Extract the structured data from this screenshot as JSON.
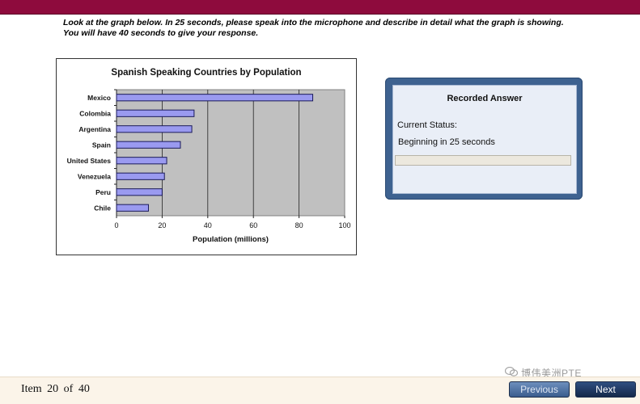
{
  "instruction": "Look at the graph below. In 25 seconds, please speak into the microphone and describe in detail what the graph is showing. You will have 40 seconds to give your response.",
  "chart_data": {
    "type": "bar",
    "orientation": "horizontal",
    "title": "Spanish Speaking Countries by Population",
    "xlabel": "Population (millions)",
    "ylabel": "",
    "categories": [
      "Chile",
      "Peru",
      "Venezuela",
      "United States",
      "Spain",
      "Argentina",
      "Colombia",
      "Mexico"
    ],
    "values": [
      14,
      20,
      21,
      22,
      28,
      33,
      34,
      86
    ],
    "xlim": [
      0,
      100
    ],
    "xticks": [
      0,
      20,
      40,
      60,
      80,
      100
    ],
    "grid": true,
    "colors": {
      "bar": "#9a9af0",
      "bar_edge": "#1a1a5a",
      "plot_bg": "#c0c0c0"
    }
  },
  "answer_panel": {
    "title": "Recorded Answer",
    "status_label": "Current Status:",
    "status_value": "Beginning in 25 seconds",
    "progress": 0
  },
  "footer": {
    "item_count": "Item 20 of 40",
    "previous_label": "Previous",
    "next_label": "Next"
  },
  "watermark": {
    "text": "博伟美洲PTE",
    "icon": "wechat-icon"
  },
  "colors": {
    "top_bar": "#8e0b3d",
    "panel_frame": "#3e6290",
    "footer_bg": "#fbf4e9"
  }
}
